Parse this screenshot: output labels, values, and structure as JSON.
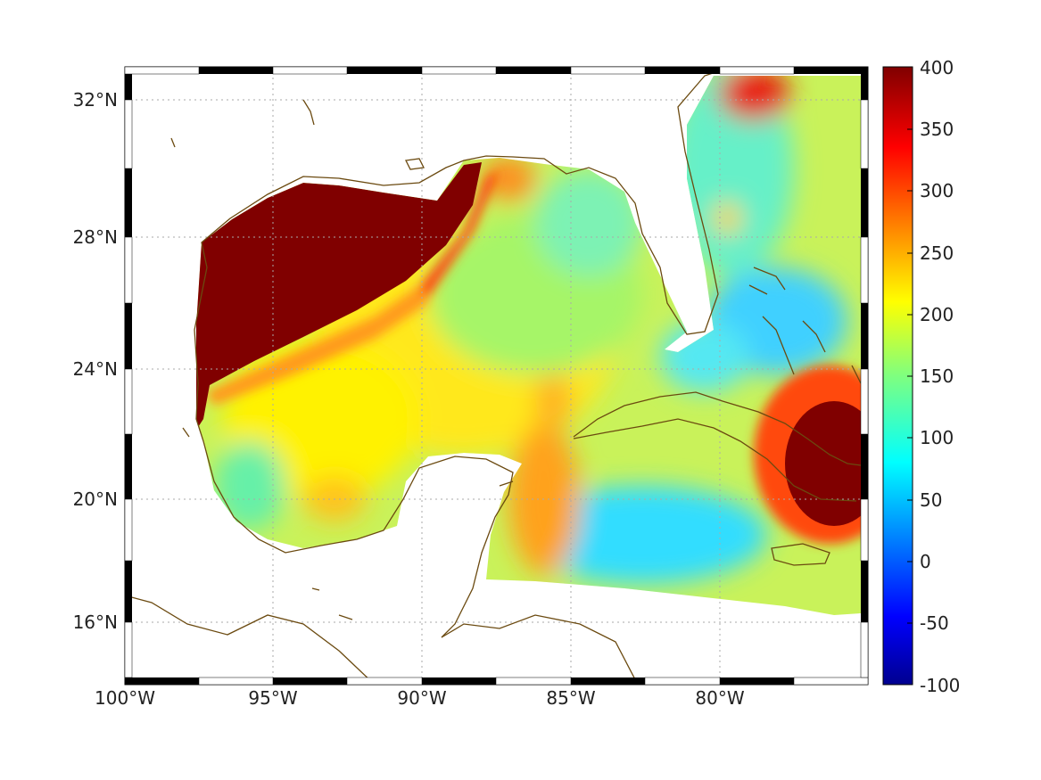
{
  "map": {
    "longitude_ticks": [
      "100°W",
      "95°W",
      "90°W",
      "85°W",
      "80°W"
    ],
    "latitude_ticks": [
      "32°N",
      "28°N",
      "24°N",
      "20°N",
      "16°N"
    ],
    "extent": {
      "lon_min": -100,
      "lon_max": -75,
      "lat_min": 14.2,
      "lat_max": 33
    },
    "grid": "dotted",
    "frame": "alternating black/white graticule border",
    "coastline_color": "#6b4a10",
    "land_color": "#ffffff"
  },
  "colorbar": {
    "ticks": [
      "400",
      "350",
      "300",
      "250",
      "200",
      "150",
      "100",
      "50",
      "0",
      "-50",
      "-100"
    ],
    "range": [
      -100,
      400
    ],
    "colormap": "jet"
  },
  "field_summary": {
    "northwest_gulf_shelf": "saturated >= 400",
    "central_gulf": "approx 150-220",
    "western_caribbean": "approx 80-150",
    "east_of_cuba": "saturated >= 400"
  }
}
